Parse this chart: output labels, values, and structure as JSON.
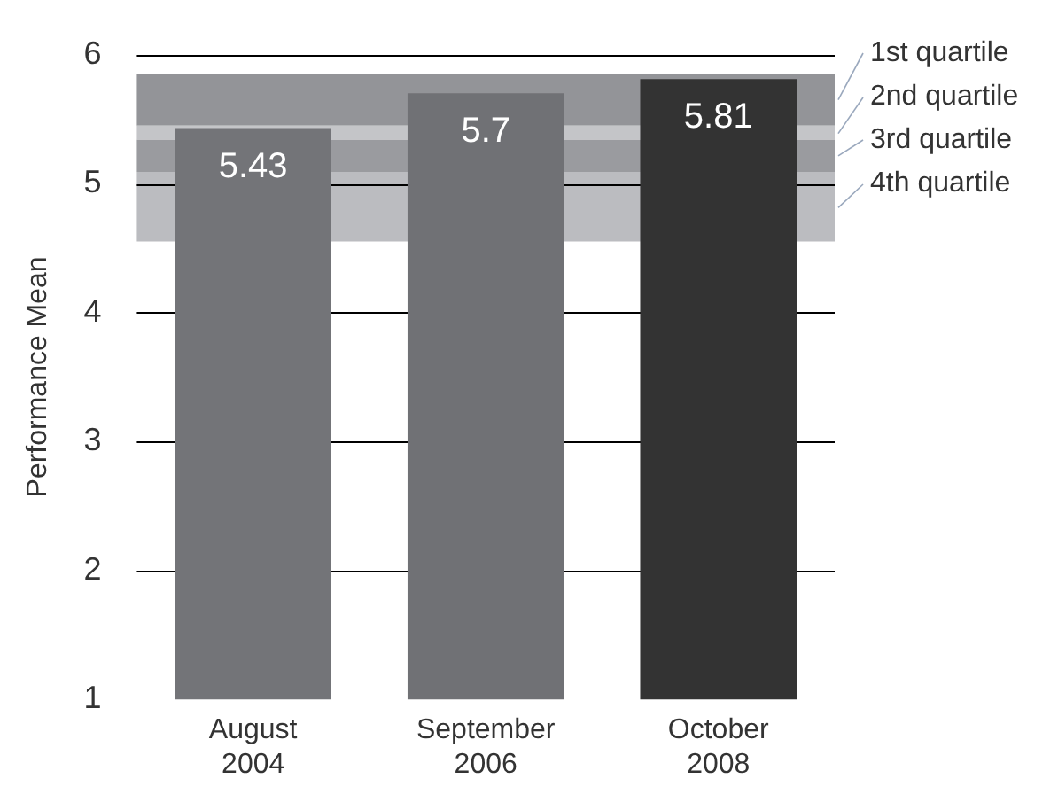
{
  "chart_data": {
    "type": "bar",
    "ylabel": "Performance Mean",
    "categories": [
      "August 2004",
      "September 2006",
      "October 2008"
    ],
    "values": [
      5.43,
      5.7,
      5.81
    ],
    "colors": [
      "#737478",
      "#707175",
      "#333333"
    ],
    "data_labels": true,
    "ylim": [
      1,
      6
    ],
    "yticks": [
      1,
      2,
      3,
      4,
      5,
      6
    ],
    "grid": "y",
    "bands": [
      {
        "axis": "y",
        "from": 5.45,
        "to": 5.85,
        "label": "1st quartile",
        "color": "#939498"
      },
      {
        "axis": "y",
        "from": 5.34,
        "to": 5.45,
        "label": "2nd quartile",
        "color": "#c4c5c8"
      },
      {
        "axis": "y",
        "from": 5.09,
        "to": 5.34,
        "label": "3rd quartile",
        "color": "#9a9b9f"
      },
      {
        "axis": "y",
        "from": 4.55,
        "to": 5.09,
        "label": "4th quartile",
        "color": "#bbbcc0"
      }
    ]
  }
}
